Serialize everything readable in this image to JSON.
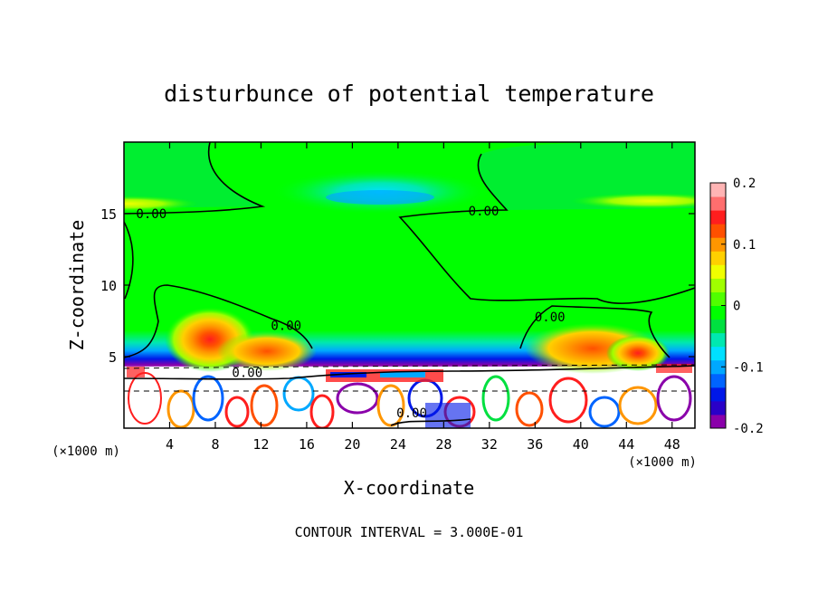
{
  "chart_data": {
    "type": "heatmap",
    "title": "disturbunce of potential temperature",
    "xlabel": "X-coordinate",
    "ylabel": "Z-coordinate",
    "x_unit_left": "(×1000 m)",
    "x_unit_right": "(×1000 m)",
    "xlim": [
      0,
      50
    ],
    "ylim": [
      0,
      20
    ],
    "xticks": [
      4,
      8,
      12,
      16,
      20,
      24,
      28,
      32,
      36,
      40,
      44,
      48
    ],
    "yticks": [
      5,
      10,
      15
    ],
    "footer": "CONTOUR INTERVAL = 3.000E-01",
    "colorbar": {
      "range": [
        -0.2,
        0.2
      ],
      "ticks": [
        {
          "value": 0.2,
          "label": "0.2"
        },
        {
          "value": 0.1,
          "label": "0.1"
        },
        {
          "value": 0,
          "label": "0"
        },
        {
          "value": -0.1,
          "label": "-0.1"
        },
        {
          "value": -0.2,
          "label": "-0.2"
        }
      ],
      "colors": [
        "#8a00aa",
        "#2a00c8",
        "#0018e8",
        "#0064ff",
        "#00a8ff",
        "#00e0ff",
        "#00e8b0",
        "#00e040",
        "#00ff00",
        "#50ff00",
        "#a0ff00",
        "#f0ff00",
        "#ffd000",
        "#ff9600",
        "#ff5000",
        "#ff1e1e",
        "#ff6e6e",
        "#ffb4b4"
      ]
    },
    "contour_labels": [
      {
        "x": 2.4,
        "y": 14.8,
        "text": "0.00"
      },
      {
        "x": 31.5,
        "y": 15.0,
        "text": "0.00"
      },
      {
        "x": 14.2,
        "y": 7.0,
        "text": "0.00"
      },
      {
        "x": 37.3,
        "y": 7.6,
        "text": "0.00"
      },
      {
        "x": 10.8,
        "y": 3.7,
        "text": "0.00"
      },
      {
        "x": 25.2,
        "y": 0.9,
        "text": "0.00"
      }
    ],
    "warm_anomalies": [
      {
        "x": 7.6,
        "z": 6.0,
        "value": 0.2
      },
      {
        "x": 12.0,
        "z": 5.0,
        "value": 0.17
      },
      {
        "x": 16.5,
        "z": 4.5,
        "value": 0.14
      },
      {
        "x": 39.5,
        "z": 5.0,
        "value": 0.16
      },
      {
        "x": 44.0,
        "z": 5.0,
        "value": 0.16
      },
      {
        "x": 46.0,
        "z": 4.5,
        "value": 0.18
      }
    ],
    "cold_anomalies": [
      {
        "x": 24.0,
        "z": 16.5,
        "value": -0.06
      },
      {
        "x": 0.5,
        "z": 15.7,
        "value": 0.1
      },
      {
        "x": 46.5,
        "z": 15.8,
        "value": 0.1
      }
    ]
  }
}
